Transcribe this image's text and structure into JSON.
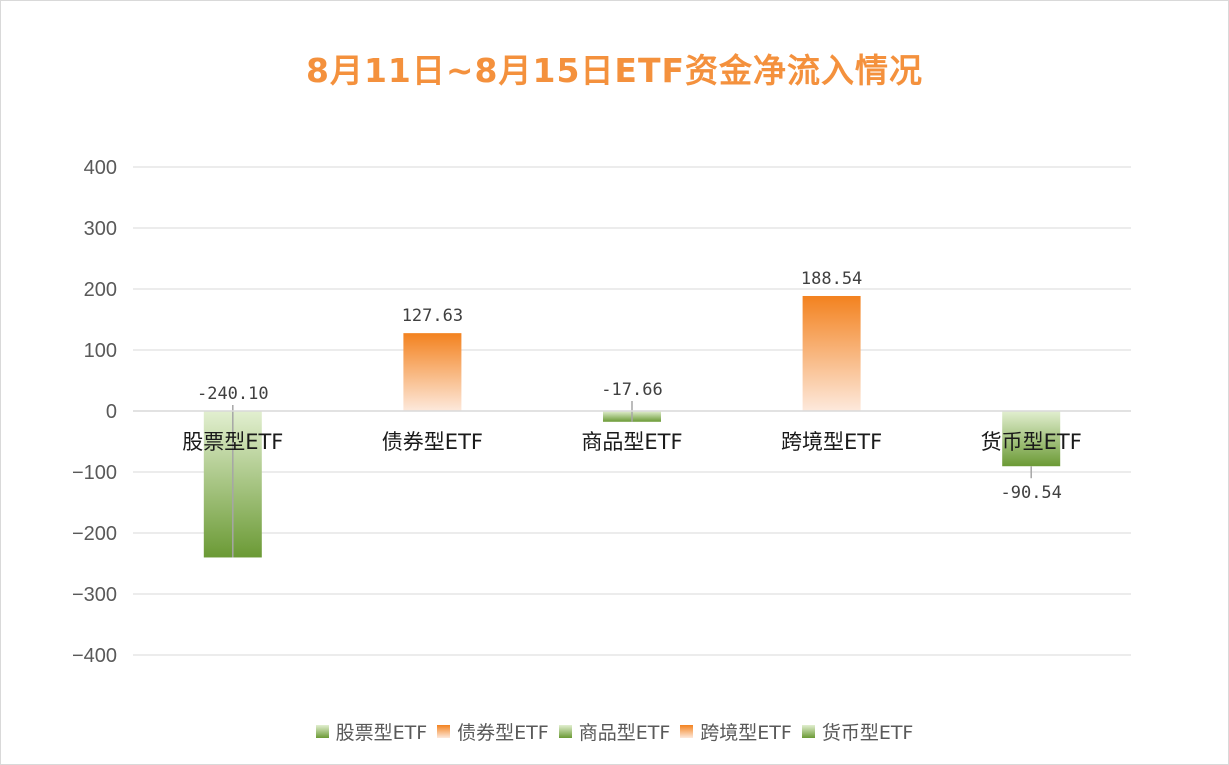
{
  "title": "8月11日~8月15日ETF资金净流入情况",
  "colors": {
    "green_top": "#e2efd0",
    "green_bottom": "#6b9a35",
    "orange_top": "#f3821f",
    "orange_bottom": "#fde9dc",
    "axis": "#d9d9d9",
    "grid": "#d9d9d9"
  },
  "chart_data": {
    "type": "bar",
    "categories": [
      "股票型ETF",
      "债券型ETF",
      "商品型ETF",
      "跨境型ETF",
      "货币型ETF"
    ],
    "values": [
      -240.1,
      127.63,
      -17.66,
      188.54,
      -90.54
    ],
    "data_labels": [
      "-240.10",
      "127.63",
      "-17.66",
      "188.54",
      "-90.54"
    ],
    "bar_colors": [
      "green",
      "orange",
      "green",
      "orange",
      "green"
    ],
    "ylim": [
      -400,
      400
    ],
    "yticks": [
      400,
      300,
      200,
      100,
      0,
      -100,
      -200,
      -300,
      -400
    ],
    "ytick_labels": [
      "400",
      "300",
      "200",
      "100",
      "0",
      "−100",
      "−200",
      "−300",
      "−400"
    ],
    "grid": true,
    "legend_position": "bottom",
    "legend": [
      "股票型ETF",
      "债券型ETF",
      "商品型ETF",
      "跨境型ETF",
      "货币型ETF"
    ]
  }
}
